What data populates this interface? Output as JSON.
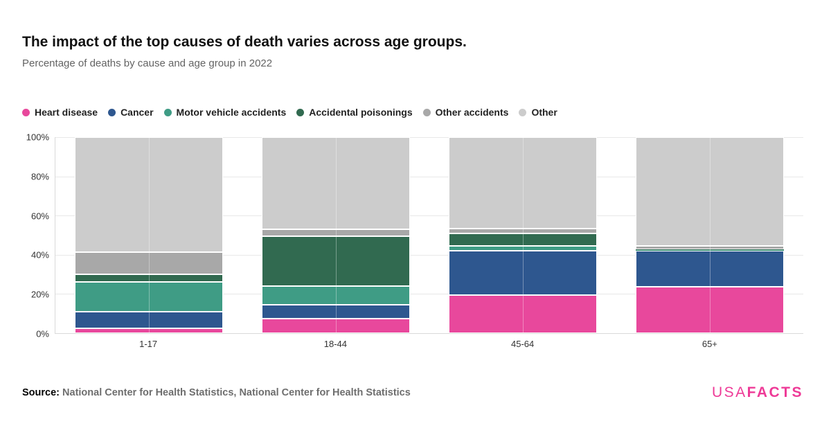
{
  "header": {
    "title": "The impact of the top causes of death varies across age groups.",
    "subtitle": "Percentage of deaths by cause and age group in 2022"
  },
  "chart_data": {
    "type": "bar",
    "stacked": true,
    "title": "The impact of the top causes of death varies across age groups.",
    "subtitle": "Percentage of deaths by cause and age group in 2022",
    "categories": [
      "1-17",
      "18-44",
      "45-64",
      "65+"
    ],
    "series": [
      {
        "name": "Heart disease",
        "color": "#e8489c",
        "values": [
          2.5,
          7.5,
          19.5,
          23.5
        ]
      },
      {
        "name": "Cancer",
        "color": "#2e578f",
        "values": [
          8.5,
          7.0,
          22.5,
          18.5
        ]
      },
      {
        "name": "Motor vehicle accidents",
        "color": "#3f9c85",
        "values": [
          15.0,
          9.5,
          2.5,
          0.3
        ]
      },
      {
        "name": "Accidental poisonings",
        "color": "#316a50",
        "values": [
          4.0,
          25.5,
          6.5,
          0.3
        ]
      },
      {
        "name": "Other accidents",
        "color": "#a8a8a8",
        "values": [
          11.5,
          3.5,
          2.5,
          2.0
        ]
      },
      {
        "name": "Other",
        "color": "#cccccc",
        "values": [
          58.5,
          47.0,
          46.5,
          55.4
        ]
      }
    ],
    "ylabel": "",
    "xlabel": "",
    "ylim": [
      0,
      100
    ],
    "y_ticks": [
      "0%",
      "20%",
      "40%",
      "60%",
      "80%",
      "100%"
    ],
    "grid": true,
    "legend_position": "top"
  },
  "footer": {
    "source_label": "Source:",
    "source_text": " National Center for Health Statistics, National Center for Health Statistics",
    "logo": {
      "part1": "USA",
      "part2": "FACTS",
      "color": "#ee3a97"
    }
  }
}
